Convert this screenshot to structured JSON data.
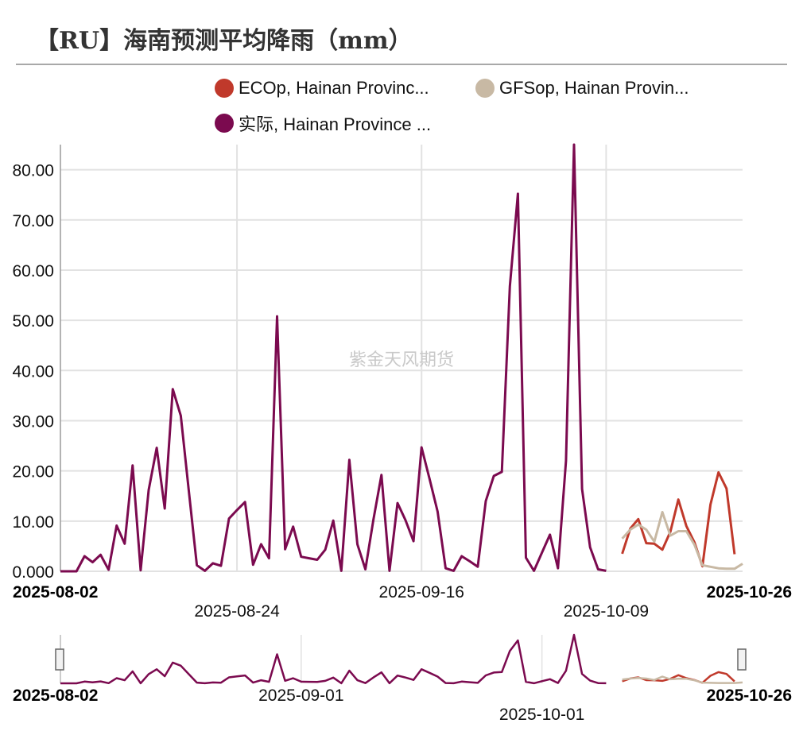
{
  "title": "【RU】海南预测平均降雨（mm）",
  "watermark": "紫金天风期货",
  "colors": {
    "eco": "#c0392b",
    "gfs": "#c8b9a4",
    "actual": "#7b0a4f",
    "grid": "#e2e2e2",
    "axis": "#9a9a9a"
  },
  "legend": [
    {
      "label": "ECOp, Hainan Provinc...",
      "color": "#c0392b"
    },
    {
      "label": "GFSop, Hainan Provin...",
      "color": "#c8b9a4"
    },
    {
      "label": "实际, Hainan Province ...",
      "color": "#7b0a4f"
    }
  ],
  "chart_data": {
    "type": "line",
    "title": "【RU】海南预测平均降雨（mm）",
    "x_range": [
      "2025-08-02",
      "2025-10-26"
    ],
    "ylim": [
      0,
      85
    ],
    "y_ticks": [
      "0.000",
      "10.00",
      "20.00",
      "30.00",
      "40.00",
      "50.00",
      "60.00",
      "70.00",
      "80.00"
    ],
    "x_tick_labels": [
      "2025-08-02",
      "2025-08-24",
      "2025-09-16",
      "2025-10-09",
      "2025-10-26"
    ],
    "grid": true,
    "legend_position": "top",
    "series": [
      {
        "name": "实际, Hainan Province ...",
        "color": "#7b0a4f",
        "start": "2025-08-02",
        "values": [
          0,
          0,
          0,
          3.0,
          1.8,
          3.3,
          0.3,
          9.1,
          5.5,
          21.1,
          0.2,
          16.2,
          24.6,
          12.5,
          36.3,
          31.0,
          16.0,
          1.2,
          0.1,
          1.6,
          1.1,
          10.5,
          12.2,
          13.8,
          1.3,
          5.4,
          2.6,
          50.8,
          4.4,
          8.9,
          2.9,
          2.6,
          2.3,
          4.3,
          10.1,
          0.1,
          22.2,
          5.4,
          0.4,
          10.3,
          19.2,
          0.1,
          13.6,
          10.2,
          6.0,
          24.7,
          18.4,
          11.9,
          0.6,
          0.1,
          3.0,
          2.0,
          0.9,
          14.0,
          19.0,
          19.8,
          56.8,
          75.2,
          2.7,
          0.1,
          3.7,
          7.3,
          0.6,
          22.0,
          85.0,
          16.4,
          4.8,
          0.4,
          0.1
        ]
      },
      {
        "name": "ECOp, Hainan Provinc...",
        "color": "#c0392b",
        "start": "2025-10-11",
        "values": [
          3.5,
          8.5,
          10.4,
          5.6,
          5.5,
          4.3,
          7.9,
          14.3,
          9.0,
          5.8,
          1.0,
          13.3,
          19.7,
          16.5,
          3.4
        ]
      },
      {
        "name": "GFSop, Hainan Provin...",
        "color": "#c8b9a4",
        "start": "2025-10-11",
        "values": [
          6.5,
          8.3,
          9.3,
          8.3,
          5.9,
          11.8,
          7.1,
          8.0,
          8.0,
          5.3,
          1.2,
          0.9,
          0.6,
          0.5,
          0.5,
          1.5
        ]
      }
    ],
    "navigator": {
      "x_tick_labels": [
        "2025-08-02",
        "2025-09-01",
        "2025-10-01",
        "2025-10-26"
      ]
    }
  }
}
